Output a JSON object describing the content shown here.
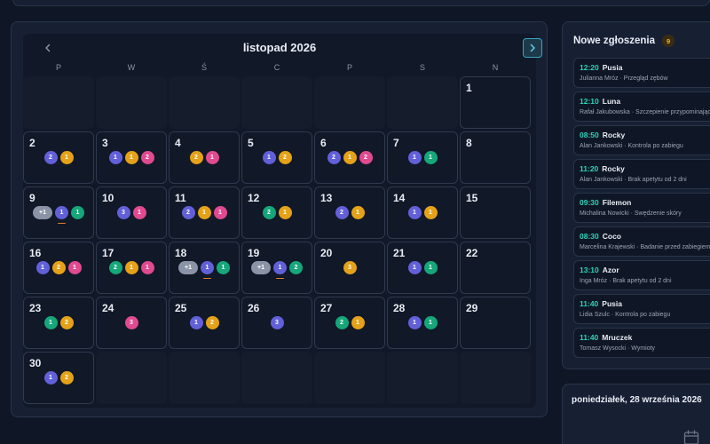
{
  "calendar": {
    "month_title": "listopad 2026",
    "prev_icon": "chevron-left-icon",
    "next_icon": "chevron-right-icon",
    "weekdays": [
      "P",
      "W",
      "Ś",
      "C",
      "P",
      "S",
      "N"
    ],
    "leading_empty": 6,
    "trailing_empty": 6,
    "days": [
      {
        "day": "1",
        "badges": []
      },
      {
        "day": "2",
        "badges": [
          {
            "n": "2",
            "c": "purple"
          },
          {
            "n": "1",
            "c": "yellow"
          }
        ]
      },
      {
        "day": "3",
        "badges": [
          {
            "n": "1",
            "c": "purple"
          },
          {
            "n": "1",
            "c": "yellow"
          },
          {
            "n": "2",
            "c": "pink"
          }
        ]
      },
      {
        "day": "4",
        "badges": [
          {
            "n": "2",
            "c": "yellow"
          },
          {
            "n": "1",
            "c": "pink"
          }
        ]
      },
      {
        "day": "5",
        "badges": [
          {
            "n": "1",
            "c": "purple"
          },
          {
            "n": "2",
            "c": "yellow"
          }
        ]
      },
      {
        "day": "6",
        "badges": [
          {
            "n": "2",
            "c": "purple"
          },
          {
            "n": "1",
            "c": "yellow"
          },
          {
            "n": "2",
            "c": "pink"
          }
        ]
      },
      {
        "day": "7",
        "badges": [
          {
            "n": "1",
            "c": "purple"
          },
          {
            "n": "1",
            "c": "green"
          }
        ]
      },
      {
        "day": "8",
        "badges": []
      },
      {
        "day": "9",
        "badges": [
          {
            "n": "+1",
            "c": "more"
          },
          {
            "n": "1",
            "c": "purple",
            "u": true
          },
          {
            "n": "1",
            "c": "green"
          }
        ]
      },
      {
        "day": "10",
        "badges": [
          {
            "n": "3",
            "c": "purple"
          },
          {
            "n": "1",
            "c": "pink"
          }
        ]
      },
      {
        "day": "11",
        "badges": [
          {
            "n": "2",
            "c": "purple"
          },
          {
            "n": "1",
            "c": "yellow"
          },
          {
            "n": "1",
            "c": "pink"
          }
        ]
      },
      {
        "day": "12",
        "badges": [
          {
            "n": "2",
            "c": "green"
          },
          {
            "n": "1",
            "c": "yellow"
          }
        ]
      },
      {
        "day": "13",
        "badges": [
          {
            "n": "2",
            "c": "purple"
          },
          {
            "n": "1",
            "c": "yellow"
          }
        ]
      },
      {
        "day": "14",
        "badges": [
          {
            "n": "1",
            "c": "purple"
          },
          {
            "n": "1",
            "c": "yellow"
          }
        ]
      },
      {
        "day": "15",
        "badges": []
      },
      {
        "day": "16",
        "badges": [
          {
            "n": "1",
            "c": "purple"
          },
          {
            "n": "2",
            "c": "yellow"
          },
          {
            "n": "1",
            "c": "pink"
          }
        ]
      },
      {
        "day": "17",
        "badges": [
          {
            "n": "2",
            "c": "green"
          },
          {
            "n": "1",
            "c": "yellow"
          },
          {
            "n": "1",
            "c": "pink"
          }
        ]
      },
      {
        "day": "18",
        "badges": [
          {
            "n": "+1",
            "c": "more"
          },
          {
            "n": "1",
            "c": "purple",
            "u": true
          },
          {
            "n": "1",
            "c": "green"
          }
        ]
      },
      {
        "day": "19",
        "badges": [
          {
            "n": "+1",
            "c": "more"
          },
          {
            "n": "1",
            "c": "purple",
            "u": true
          },
          {
            "n": "2",
            "c": "green"
          }
        ]
      },
      {
        "day": "20",
        "badges": [
          {
            "n": "3",
            "c": "yellow"
          }
        ]
      },
      {
        "day": "21",
        "badges": [
          {
            "n": "1",
            "c": "purple"
          },
          {
            "n": "1",
            "c": "green"
          }
        ]
      },
      {
        "day": "22",
        "badges": []
      },
      {
        "day": "23",
        "badges": [
          {
            "n": "1",
            "c": "green"
          },
          {
            "n": "2",
            "c": "yellow"
          }
        ]
      },
      {
        "day": "24",
        "badges": [
          {
            "n": "3",
            "c": "pink"
          }
        ]
      },
      {
        "day": "25",
        "badges": [
          {
            "n": "1",
            "c": "purple"
          },
          {
            "n": "2",
            "c": "yellow"
          }
        ]
      },
      {
        "day": "26",
        "badges": [
          {
            "n": "3",
            "c": "purple"
          }
        ]
      },
      {
        "day": "27",
        "badges": [
          {
            "n": "2",
            "c": "green"
          },
          {
            "n": "1",
            "c": "yellow"
          }
        ]
      },
      {
        "day": "28",
        "badges": [
          {
            "n": "1",
            "c": "purple"
          },
          {
            "n": "1",
            "c": "green"
          }
        ]
      },
      {
        "day": "29",
        "badges": []
      },
      {
        "day": "30",
        "badges": [
          {
            "n": "1",
            "c": "purple"
          },
          {
            "n": "2",
            "c": "yellow"
          }
        ]
      }
    ]
  },
  "requests": {
    "title": "Nowe zgłoszenia",
    "count": "9",
    "items": [
      {
        "time": "12:20",
        "pet": "Pusia",
        "owner_reason": "Julianna Mróz · Przegląd zębów"
      },
      {
        "time": "12:10",
        "pet": "Luna",
        "owner_reason": "Rafał Jakubowska · Szczepienie przypominające"
      },
      {
        "time": "08:50",
        "pet": "Rocky",
        "owner_reason": "Alan Jankowski · Kontrola po zabiegu"
      },
      {
        "time": "11:20",
        "pet": "Rocky",
        "owner_reason": "Alan Jankowski · Brak apetytu od 2 dni"
      },
      {
        "time": "09:30",
        "pet": "Filemon",
        "owner_reason": "Michalina Nowicki · Swędzenie skóry"
      },
      {
        "time": "08:30",
        "pet": "Coco",
        "owner_reason": "Marcelina Krajewski · Badanie przed zabiegiem"
      },
      {
        "time": "13:10",
        "pet": "Azor",
        "owner_reason": "Inga Mróz · Brak apetytu od 2 dni"
      },
      {
        "time": "11:40",
        "pet": "Pusia",
        "owner_reason": "Lidia Szulc · Kontrola po zabiegu"
      },
      {
        "time": "11:40",
        "pet": "Mruczek",
        "owner_reason": "Tomasz Wysocki · Wymioty"
      }
    ]
  },
  "day_panel": {
    "title": "poniedziałek, 28 września 2026",
    "icon": "calendar-icon"
  },
  "colors": {
    "purple": "#6260d9",
    "yellow": "#e5a218",
    "pink": "#e14a90",
    "green": "#15a77a",
    "more": "#8a94a6",
    "accent": "#2ed3b7"
  }
}
